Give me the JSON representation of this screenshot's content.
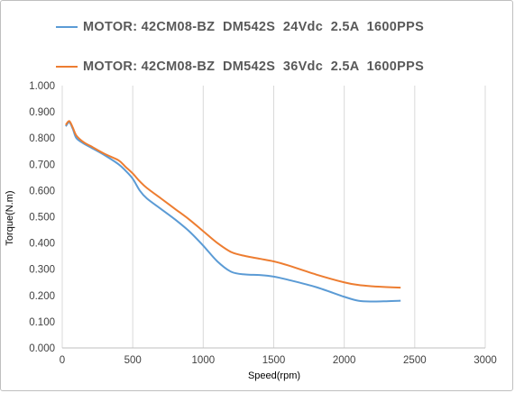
{
  "chart_data": {
    "type": "line",
    "title": "",
    "xlabel": "Speed(rpm)",
    "ylabel": "Torque(N.m)",
    "xlim": [
      0,
      3000
    ],
    "ylim": [
      0,
      1.0
    ],
    "x_ticks": [
      "0",
      "500",
      "1000",
      "1500",
      "2000",
      "2500",
      "3000"
    ],
    "y_ticks": [
      "0.000",
      "0.100",
      "0.200",
      "0.300",
      "0.400",
      "0.500",
      "0.600",
      "0.700",
      "0.800",
      "0.900",
      "1.000"
    ],
    "grid": "vertical",
    "legend_position": "top",
    "series": [
      {
        "name": "MOTOR: 42CM08-BZ  DM542S  24Vdc  2.5A  1600PPS",
        "color": "#5b9bd5",
        "x": [
          25,
          50,
          75,
          100,
          150,
          200,
          300,
          400,
          450,
          500,
          550,
          600,
          700,
          800,
          900,
          1000,
          1100,
          1200,
          1300,
          1400,
          1500,
          1600,
          1800,
          2000,
          2100,
          2200,
          2300,
          2400
        ],
        "y": [
          0.845,
          0.86,
          0.835,
          0.8,
          0.78,
          0.765,
          0.735,
          0.7,
          0.675,
          0.645,
          0.6,
          0.57,
          0.53,
          0.49,
          0.445,
          0.39,
          0.33,
          0.29,
          0.28,
          0.278,
          0.272,
          0.26,
          0.232,
          0.195,
          0.18,
          0.177,
          0.178,
          0.18
        ]
      },
      {
        "name": "MOTOR: 42CM08-BZ  DM542S  36Vdc  2.5A  1600PPS",
        "color": "#ed7d31",
        "x": [
          25,
          50,
          75,
          100,
          150,
          200,
          300,
          400,
          450,
          500,
          550,
          600,
          700,
          800,
          900,
          1000,
          1100,
          1200,
          1300,
          1400,
          1500,
          1600,
          1800,
          2000,
          2100,
          2200,
          2300,
          2400
        ],
        "y": [
          0.85,
          0.865,
          0.84,
          0.81,
          0.785,
          0.77,
          0.74,
          0.715,
          0.69,
          0.665,
          0.635,
          0.61,
          0.57,
          0.53,
          0.49,
          0.445,
          0.4,
          0.365,
          0.35,
          0.34,
          0.33,
          0.315,
          0.28,
          0.25,
          0.24,
          0.235,
          0.232,
          0.23
        ]
      }
    ]
  }
}
